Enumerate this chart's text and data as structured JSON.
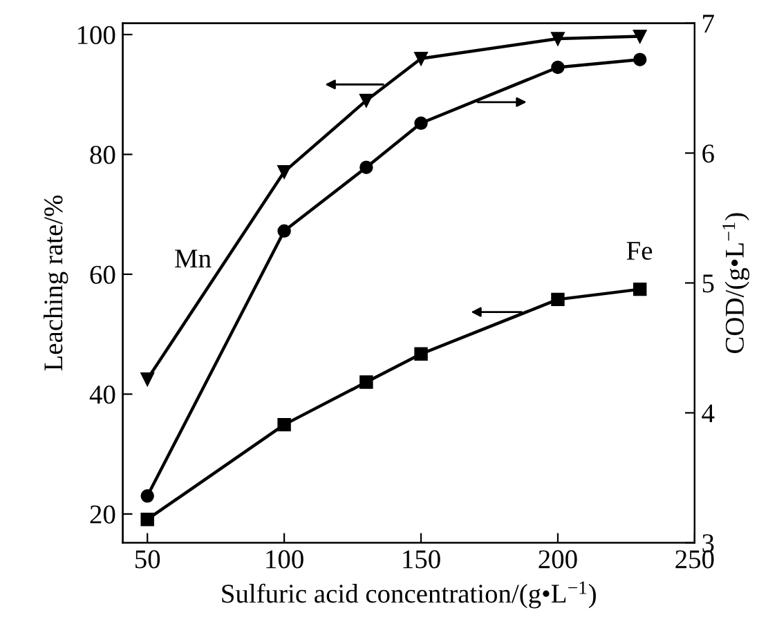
{
  "chart_data": {
    "type": "line",
    "xlabel": "Sulfuric acid concentration/(g•L$^{−1}$)",
    "ylabel": "Leaching rate/%",
    "y2label": "COD/(g•L$^{−1}$)",
    "x": [
      50,
      100,
      130,
      150,
      200,
      230
    ],
    "series": [
      {
        "name": "Mn",
        "color": "#000000",
        "marker": "triangle",
        "axis": "y",
        "values": [
          42.5,
          77.1,
          89.0,
          96.0,
          99.3,
          99.7
        ]
      },
      {
        "color": "#000000",
        "marker": "circle",
        "axis": "y2",
        "values": [
          3.36,
          5.4,
          5.89,
          6.23,
          6.66,
          6.72
        ]
      },
      {
        "name": "Fe",
        "color": "#000000",
        "marker": "square",
        "axis": "y",
        "values": [
          19.1,
          34.9,
          42.0,
          46.7,
          55.8,
          57.5
        ]
      }
    ],
    "xlim": [
      41,
      250
    ],
    "xticks": [
      50,
      100,
      150,
      200,
      250
    ],
    "ylim": [
      15.2,
      101.9
    ],
    "yticks": [
      20,
      40,
      60,
      80,
      100
    ],
    "y2lim": [
      3,
      7
    ],
    "y2ticks": [
      3,
      4,
      5,
      6,
      7
    ],
    "grid": false,
    "legend": false,
    "line_style": "solid"
  }
}
